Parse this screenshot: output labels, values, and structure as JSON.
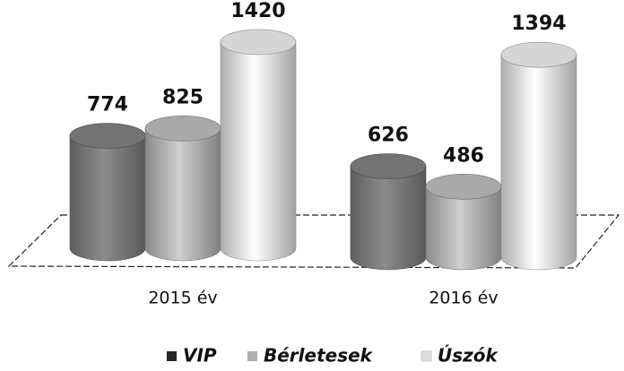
{
  "chart_data": {
    "type": "bar",
    "categories": [
      "2015 év",
      "2016 év"
    ],
    "series": [
      {
        "name": "VIP",
        "color": "#7d7d7d",
        "values": [
          774,
          626
        ]
      },
      {
        "name": "Bérletesek",
        "color": "#b8b8b8",
        "values": [
          825,
          486
        ]
      },
      {
        "name": "Úszók",
        "color": "#e8e8e8",
        "values": [
          1420,
          1394
        ]
      }
    ]
  }
}
